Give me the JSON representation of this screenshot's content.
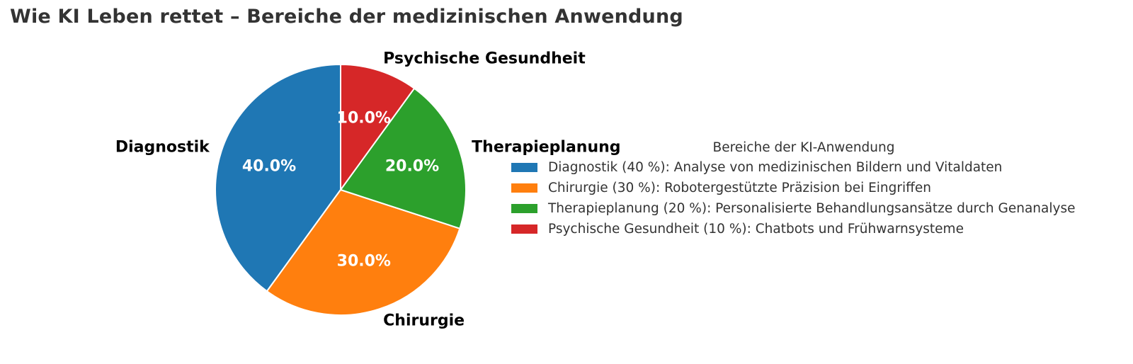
{
  "title": "Wie KI Leben rettet – Bereiche der medizinischen Anwendung",
  "chart_data": {
    "type": "pie",
    "title": "Wie KI Leben rettet – Bereiche der medizinischen Anwendung",
    "categories": [
      "Diagnostik",
      "Chirurgie",
      "Therapieplanung",
      "Psychische Gesundheit"
    ],
    "values": [
      40,
      30,
      20,
      10
    ],
    "percent_labels": [
      "40.0%",
      "30.0%",
      "20.0%",
      "10.0%"
    ],
    "colors": [
      "#1f77b4",
      "#ff7f0e",
      "#2ca02c",
      "#d62728"
    ],
    "start_angle_deg": 90,
    "direction": "counterclockwise",
    "legend": {
      "title": "Bereiche der KI-Anwendung",
      "placement": "right",
      "entries": [
        "Diagnostik (40 %): Analyse von medizinischen Bildern und Vitaldaten",
        "Chirurgie (30 %): Robotergestützte Präzision bei Eingriffen",
        "Therapieplanung (20 %): Personalisierte Behandlungsansätze durch Genanalyse",
        "Psychische Gesundheit (10 %): Chatbots und Frühwarnsysteme"
      ]
    }
  }
}
